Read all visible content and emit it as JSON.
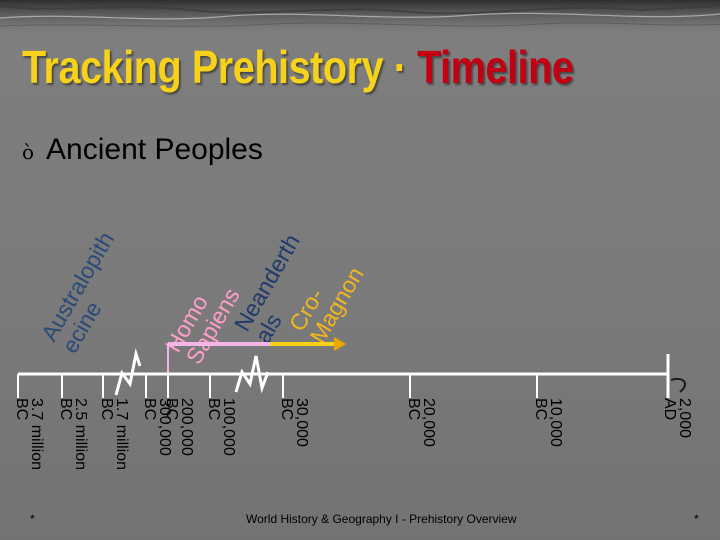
{
  "slide": {
    "title_part1": "Tracking Prehistory · ",
    "title_part2": "Timeline",
    "bullet_glyph": "ò",
    "bullet_text": "Ancient Peoples",
    "footer_left": "*",
    "footer_center": "World History & Geography I - Prehistory Overview",
    "footer_right": "*"
  },
  "colors": {
    "title_yellow": "#f7d21a",
    "title_red": "#c30012",
    "homo_sapiens_bar": "#f3b6e6",
    "cro_magnon_bar": "#f7d21a",
    "cro_magnon_arrow": "#e9a700",
    "timeline": "#ffffff"
  },
  "timeline": {
    "ticks": [
      "3.7 million BC",
      "2.5 million BC",
      "1.7 million BC",
      "300,000 BC",
      "200,000 BC",
      "100,000 BC",
      "30,000 BC",
      "20,000 BC",
      "10,000 BC",
      "2,000 AD"
    ],
    "species": [
      {
        "name": "Australopithecine"
      },
      {
        "name": "Homo Sapiens"
      },
      {
        "name": "Neanderthals"
      },
      {
        "name": "Cro-Magnon"
      }
    ],
    "break_icon": "zigzag-break-icon",
    "end_marker_icon": "flag-marker-icon"
  }
}
